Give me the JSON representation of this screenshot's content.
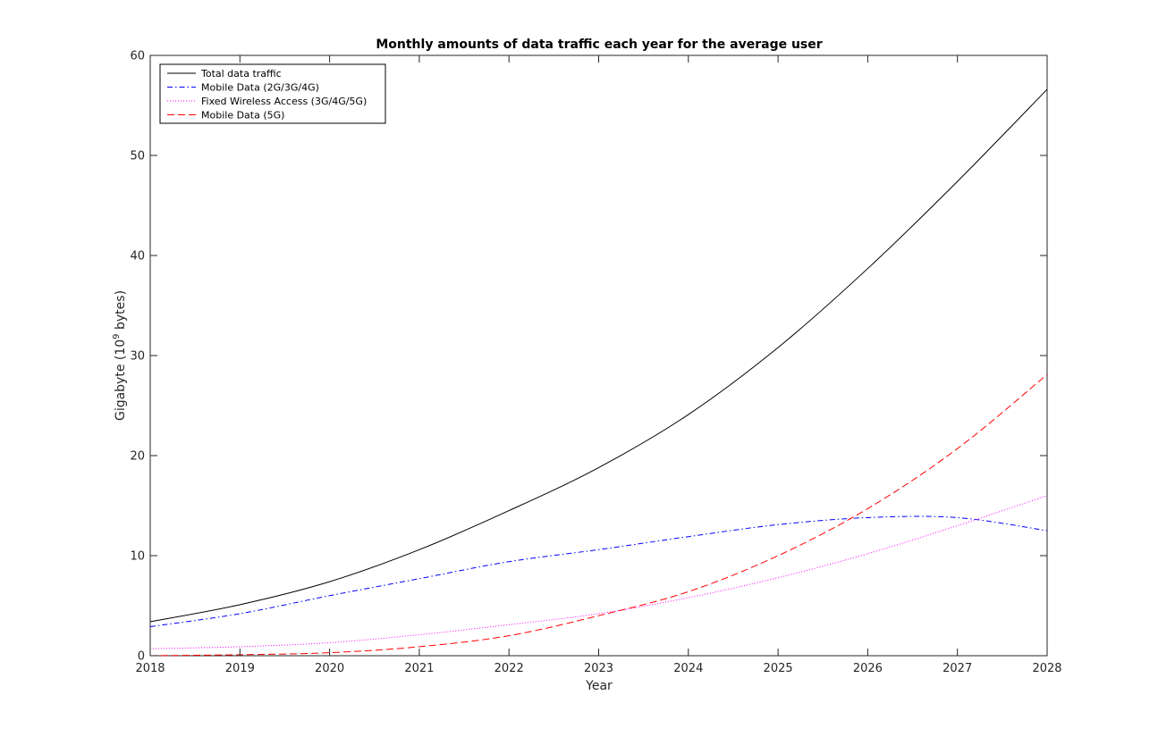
{
  "chart_data": {
    "type": "line",
    "title": "Monthly amounts of data traffic each year for the average user",
    "xlabel": "Year",
    "ylabel": "Gigabyte (10",
    "ylabel_superscript": "9",
    "ylabel_suffix": " bytes)",
    "xlim": [
      2018,
      2028
    ],
    "ylim": [
      0,
      60
    ],
    "xticks": [
      "2018",
      "2019",
      "2020",
      "2021",
      "2022",
      "2023",
      "2024",
      "2025",
      "2026",
      "2027",
      "2028"
    ],
    "yticks": [
      "0",
      "10",
      "20",
      "30",
      "40",
      "50",
      "60"
    ],
    "grid": false,
    "legend_position": "top-left",
    "x": [
      2018,
      2019,
      2020,
      2021,
      2022,
      2023,
      2024,
      2025,
      2026,
      2027,
      2028
    ],
    "series": [
      {
        "name": "Total data traffic",
        "color": "#000000",
        "style": "solid",
        "values": [
          3.4,
          5.1,
          7.4,
          10.6,
          14.5,
          18.8,
          24.1,
          30.8,
          38.7,
          47.4,
          56.6
        ]
      },
      {
        "name": "Mobile Data (2G/3G/4G)",
        "color": "#0000ff",
        "style": "dashdot",
        "values": [
          2.9,
          4.2,
          6.0,
          7.7,
          9.4,
          10.6,
          11.9,
          13.1,
          13.8,
          13.8,
          12.5
        ]
      },
      {
        "name": "Fixed Wireless Access (3G/4G/5G)",
        "color": "#ff00ff",
        "style": "dotted",
        "values": [
          0.7,
          0.9,
          1.3,
          2.1,
          3.1,
          4.2,
          5.8,
          7.8,
          10.2,
          13.0,
          16.0
        ]
      },
      {
        "name": "Mobile Data (5G)",
        "color": "#ff0000",
        "style": "dashed",
        "values": [
          0.0,
          0.1,
          0.3,
          0.9,
          2.0,
          4.0,
          6.4,
          10.0,
          14.7,
          20.7,
          28.1
        ]
      }
    ]
  }
}
